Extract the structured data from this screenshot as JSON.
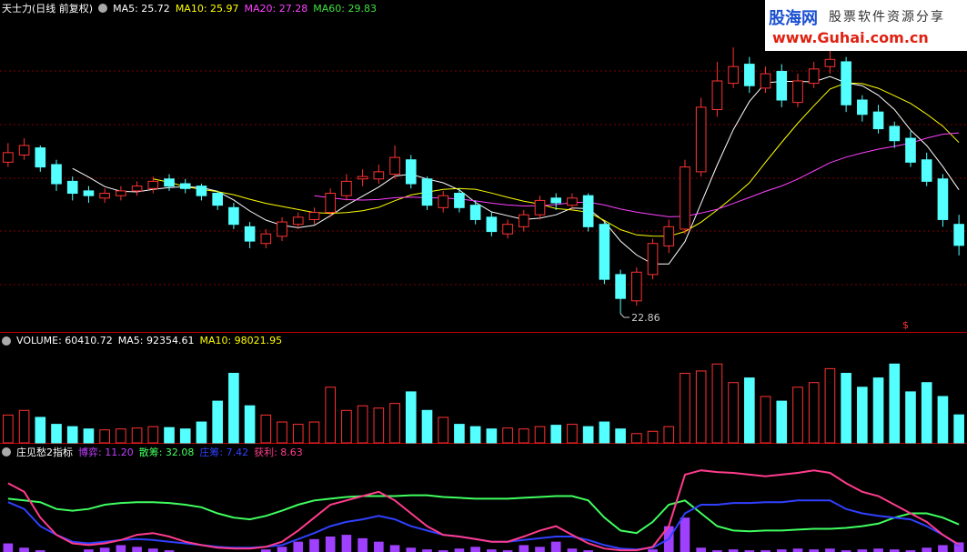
{
  "watermark": {
    "brand": "股海网",
    "slogan": "股票软件资源分享",
    "url": "www.Guhai.com.cn"
  },
  "chart_data": [
    {
      "type": "candlestick",
      "title": "天士力(日线 前复权)",
      "legend": [
        {
          "text": "MA5: 25.72",
          "color": "#ffffff"
        },
        {
          "text": "MA10: 25.97",
          "color": "#ffff00"
        },
        {
          "text": "MA20: 27.28",
          "color": "#ff40ff"
        },
        {
          "text": "MA60: 29.83",
          "color": "#40e040"
        }
      ],
      "up_color": "#ff3232",
      "down_color": "#54ffff",
      "signal": "$",
      "ylim": [
        22.1,
        35.3
      ],
      "open": [
        29.2,
        29.5,
        29.8,
        29.1,
        28.4,
        28.0,
        27.7,
        27.8,
        28.0,
        28.1,
        28.5,
        28.3,
        28.2,
        27.9,
        27.3,
        26.5,
        25.8,
        26.1,
        26.6,
        26.8,
        27.1,
        27.8,
        28.5,
        28.5,
        28.7,
        29.3,
        28.5,
        27.3,
        27.9,
        27.4,
        26.9,
        26.2,
        26.5,
        27.0,
        27.7,
        27.4,
        27.8,
        26.6,
        24.5,
        23.4,
        24.5,
        25.7,
        26.4,
        28.8,
        31.4,
        32.5,
        33.3,
        32.3,
        33.0,
        31.7,
        32.5,
        33.2,
        33.4,
        31.8,
        31.3,
        30.7,
        30.2,
        29.3,
        28.5,
        26.6
      ],
      "close": [
        29.6,
        29.9,
        29.0,
        28.3,
        27.9,
        27.8,
        27.9,
        28.0,
        28.2,
        28.4,
        28.2,
        28.1,
        27.8,
        27.4,
        26.6,
        25.9,
        26.2,
        26.7,
        26.9,
        27.1,
        27.9,
        28.4,
        28.6,
        28.8,
        29.4,
        28.3,
        27.4,
        27.8,
        27.3,
        26.8,
        26.3,
        26.6,
        27.0,
        27.6,
        27.5,
        27.7,
        26.5,
        24.3,
        23.5,
        24.6,
        25.8,
        26.5,
        29.0,
        31.5,
        32.6,
        33.2,
        32.4,
        32.9,
        31.8,
        32.6,
        33.1,
        33.5,
        31.6,
        31.2,
        30.6,
        30.1,
        29.2,
        28.4,
        26.8,
        25.72
      ],
      "high": [
        30.0,
        30.2,
        29.9,
        29.3,
        28.6,
        28.2,
        28.1,
        28.2,
        28.4,
        28.6,
        28.7,
        28.5,
        28.3,
        28.0,
        27.5,
        26.7,
        26.4,
        26.9,
        27.1,
        27.3,
        28.1,
        28.7,
        28.9,
        29.1,
        29.9,
        29.5,
        28.6,
        28.0,
        28.1,
        27.6,
        27.1,
        26.8,
        27.2,
        27.8,
        27.9,
        27.9,
        27.9,
        26.7,
        24.7,
        24.8,
        26.0,
        26.8,
        29.3,
        31.9,
        33.4,
        34.0,
        33.6,
        33.2,
        33.3,
        32.9,
        33.4,
        33.9,
        33.6,
        32.0,
        31.6,
        30.9,
        30.5,
        29.6,
        28.7,
        27.0
      ],
      "low": [
        29.0,
        29.3,
        28.8,
        28.0,
        27.6,
        27.5,
        27.5,
        27.6,
        27.8,
        27.9,
        28.0,
        27.9,
        27.6,
        27.2,
        26.4,
        25.6,
        25.6,
        25.9,
        26.4,
        26.6,
        26.9,
        27.6,
        28.2,
        28.3,
        28.5,
        28.1,
        27.2,
        27.1,
        27.1,
        26.6,
        26.1,
        26.0,
        26.3,
        26.8,
        27.2,
        27.2,
        26.3,
        24.1,
        22.86,
        23.2,
        24.3,
        25.4,
        26.2,
        28.6,
        31.1,
        32.3,
        32.1,
        32.1,
        31.5,
        31.5,
        32.3,
        32.9,
        31.3,
        30.9,
        30.4,
        29.8,
        29.0,
        28.2,
        26.5,
        25.3
      ]
    },
    {
      "type": "volume",
      "legend": [
        {
          "text": "VOLUME: 60410.72",
          "color": "#ffffff"
        },
        {
          "text": "MA5: 92354.61",
          "color": "#ffffff"
        },
        {
          "text": "MA10: 98021.95",
          "color": "#ffff00"
        }
      ],
      "ylim": [
        0,
        200000
      ],
      "values": [
        60000,
        70000,
        55000,
        40000,
        35000,
        30000,
        28000,
        30000,
        32000,
        35000,
        33000,
        30000,
        45000,
        90000,
        150000,
        80000,
        60000,
        45000,
        40000,
        45000,
        120000,
        70000,
        80000,
        75000,
        85000,
        110000,
        70000,
        55000,
        40000,
        35000,
        30000,
        32000,
        30000,
        35000,
        38000,
        40000,
        35000,
        45000,
        30000,
        20000,
        25000,
        35000,
        150000,
        155000,
        170000,
        130000,
        140000,
        100000,
        90000,
        120000,
        130000,
        160000,
        150000,
        120000,
        140000,
        170000,
        110000,
        130000,
        100000,
        60410.72
      ]
    },
    {
      "type": "line",
      "title": "庄见愁2指标",
      "legend": [
        {
          "text": "博弈: 11.20",
          "color": "#c040ff"
        },
        {
          "text": "散筹: 32.08",
          "color": "#40ff60"
        },
        {
          "text": "庄筹: 7.42",
          "color": "#3040ff"
        },
        {
          "text": "获利: 8.63",
          "color": "#ff3c8c"
        }
      ],
      "ylim": [
        0,
        110
      ],
      "series": [
        {
          "name": "博弈",
          "type": "bar",
          "color": "#a040ff",
          "values": [
            10,
            5,
            2,
            0,
            0,
            3,
            5,
            8,
            6,
            4,
            2,
            0,
            0,
            0,
            0,
            0,
            3,
            6,
            12,
            15,
            18,
            20,
            16,
            12,
            8,
            5,
            3,
            2,
            4,
            6,
            3,
            2,
            8,
            6,
            12,
            4,
            2,
            0,
            0,
            0,
            3,
            30,
            40,
            5,
            2,
            3,
            2,
            2,
            3,
            4,
            3,
            4,
            2,
            3,
            4,
            3,
            2,
            5,
            8,
            11.2
          ]
        },
        {
          "name": "散筹",
          "type": "line",
          "color": "#40ff60",
          "values": [
            62,
            60,
            58,
            50,
            48,
            50,
            55,
            57,
            58,
            58,
            57,
            55,
            52,
            45,
            40,
            38,
            42,
            48,
            55,
            60,
            62,
            64,
            65,
            65,
            65,
            66,
            66,
            64,
            63,
            62,
            62,
            62,
            63,
            64,
            65,
            65,
            60,
            40,
            25,
            22,
            35,
            55,
            60,
            45,
            30,
            25,
            24,
            25,
            25,
            26,
            27,
            27,
            28,
            30,
            33,
            40,
            45,
            45,
            40,
            32.08
          ]
        },
        {
          "name": "庄筹",
          "type": "line",
          "color": "#3040ff",
          "values": [
            58,
            50,
            30,
            20,
            12,
            10,
            12,
            14,
            15,
            14,
            12,
            10,
            8,
            6,
            5,
            5,
            6,
            8,
            15,
            22,
            30,
            35,
            38,
            42,
            38,
            30,
            25,
            20,
            18,
            15,
            12,
            12,
            14,
            16,
            18,
            18,
            14,
            8,
            4,
            3,
            5,
            15,
            45,
            55,
            55,
            57,
            57,
            58,
            58,
            60,
            60,
            60,
            50,
            45,
            42,
            40,
            38,
            30,
            20,
            7.42
          ]
        },
        {
          "name": "获利",
          "type": "line",
          "color": "#ff3c8c",
          "values": [
            80,
            70,
            40,
            20,
            10,
            8,
            10,
            14,
            20,
            22,
            18,
            12,
            8,
            5,
            4,
            4,
            6,
            12,
            25,
            40,
            55,
            60,
            65,
            70,
            60,
            45,
            30,
            20,
            18,
            15,
            12,
            12,
            18,
            25,
            30,
            20,
            10,
            4,
            2,
            2,
            6,
            30,
            90,
            95,
            93,
            92,
            90,
            88,
            90,
            92,
            95,
            92,
            80,
            70,
            65,
            55,
            45,
            35,
            20,
            8.63
          ]
        }
      ]
    }
  ]
}
